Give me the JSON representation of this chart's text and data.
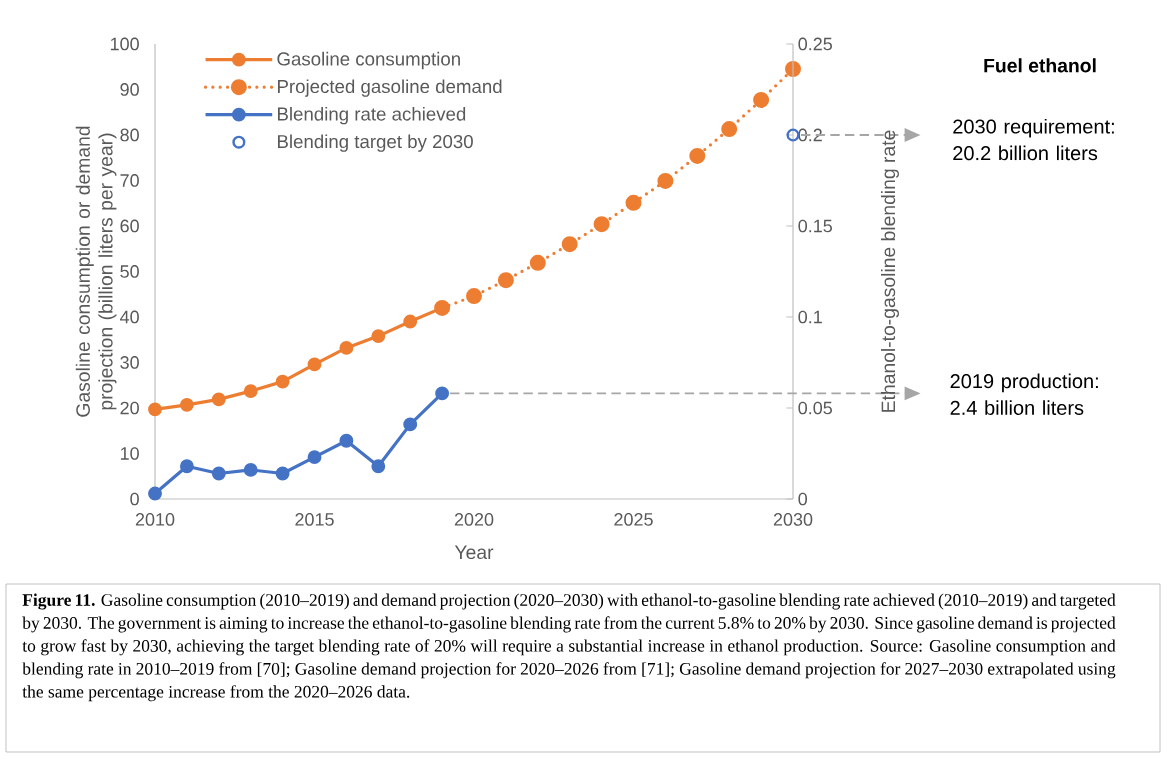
{
  "chart_data": {
    "type": "line",
    "xlabel": "Year",
    "ylabel": "Gasoline consumption or demand projection (billion liters per year)",
    "y2label": "Ethanol-to-gasoline blending rate",
    "xlim": [
      2010,
      2030
    ],
    "xticks": [
      2010,
      2015,
      2020,
      2025,
      2030
    ],
    "ylim": [
      0,
      100
    ],
    "yticks": [
      0,
      10,
      20,
      30,
      40,
      50,
      60,
      70,
      80,
      90,
      100
    ],
    "y2lim": [
      0,
      0.25
    ],
    "y2ticks": [
      0,
      0.05,
      0.1,
      0.15,
      0.2,
      0.25
    ],
    "marker": "circle",
    "legend": "top left",
    "grid": false,
    "series": [
      {
        "name": "Gasoline consumption",
        "color": "#ed7d31",
        "line_style": "solid",
        "x": [
          2010,
          2011,
          2012,
          2013,
          2014,
          2015,
          2016,
          2017,
          2018,
          2019
        ],
        "values": [
          19.7,
          20.7,
          21.9,
          23.7,
          25.8,
          29.6,
          33.2,
          35.8,
          39.0,
          42.0
        ]
      },
      {
        "name": "Projected gasoline demand",
        "color": "#ed7d31",
        "line_style": "dotted",
        "x": [
          2019,
          2020,
          2021,
          2022,
          2023,
          2024,
          2025,
          2026,
          2027,
          2028,
          2029,
          2030
        ],
        "values": [
          42.0,
          44.6,
          48.1,
          51.9,
          56.0,
          60.4,
          65.1,
          69.9,
          75.4,
          81.3,
          87.7,
          94.5
        ]
      },
      {
        "name": "Blending rate achieved",
        "color": "#4472c4",
        "line_style": "solid",
        "axis": "y2",
        "x": [
          2010,
          2011,
          2012,
          2013,
          2014,
          2015,
          2016,
          2017,
          2018,
          2019
        ],
        "values": [
          0.003,
          0.018,
          0.014,
          0.016,
          0.014,
          0.023,
          0.032,
          0.018,
          0.041,
          0.058
        ]
      },
      {
        "name": "Blending target by 2030",
        "color": "#4472c4",
        "type": "scatter",
        "axis": "y2",
        "x": [
          2030
        ],
        "values": [
          0.2
        ]
      }
    ],
    "annotations": [
      "Fuel ethanol",
      "2030 requirement: 20.2 billion liters",
      "2019 production: 2.4 billion liters",
      "**Figure 11.** Gasoline consumption (2010–2019) and demand projection (2020–2030) with ethanol-to-gasoline blending rate achieved (2010–2019) and targeted by 2030. The government is aiming to increase the ethanol-to-gasoline blending rate from the current 5.8% to 20% by 2030. Since gasoline demand is projected to grow fast by 2030, achieving the target blending rate of 20% will require a substantial increase in ethanol production. Source: Gasoline consumption and blending rate in 2010–2019 from [70]; Gasoline demand projection for 2020–2026 from [71]; Gasoline demand projection for 2027–2030 extrapolated using the same percentage increase from the 2020–2026 data."
    ]
  }
}
